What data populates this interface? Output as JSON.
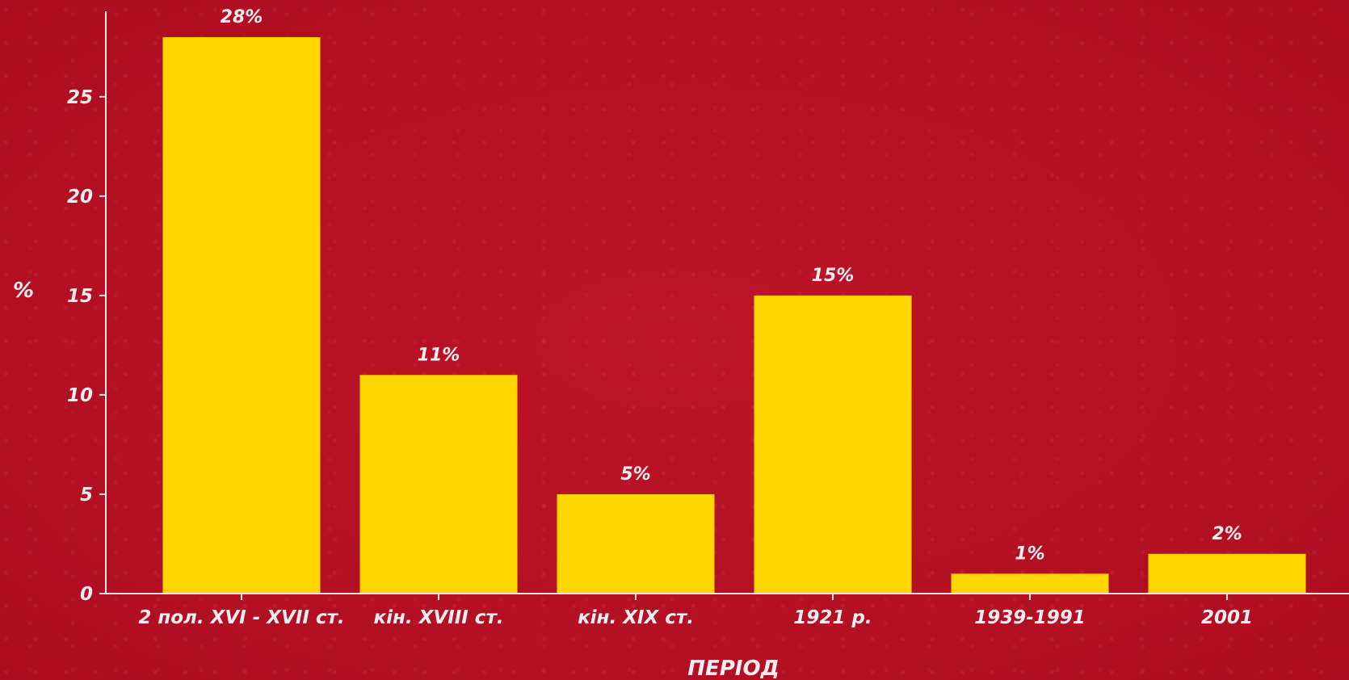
{
  "chart_data": {
    "type": "bar",
    "categories": [
      "2 пол. XVI - XVII ст.",
      "кін. XVIII ст.",
      "кін. XIX ст.",
      "1921 р.",
      "1939-1991",
      "2001"
    ],
    "values": [
      28,
      11,
      5,
      15,
      1,
      2
    ],
    "value_labels": [
      "28%",
      "11%",
      "5%",
      "15%",
      "1%",
      "2%"
    ],
    "xlabel": "ПЕРІОД",
    "ylabel": "%",
    "ylim": [
      0,
      29.3
    ],
    "yticks": [
      0,
      5,
      10,
      15,
      20,
      25
    ],
    "grid": false,
    "colors": {
      "bar": "#ffd700",
      "axis": "#f3e3e3",
      "text": "#f6eeee",
      "background": "#b50f24"
    }
  }
}
